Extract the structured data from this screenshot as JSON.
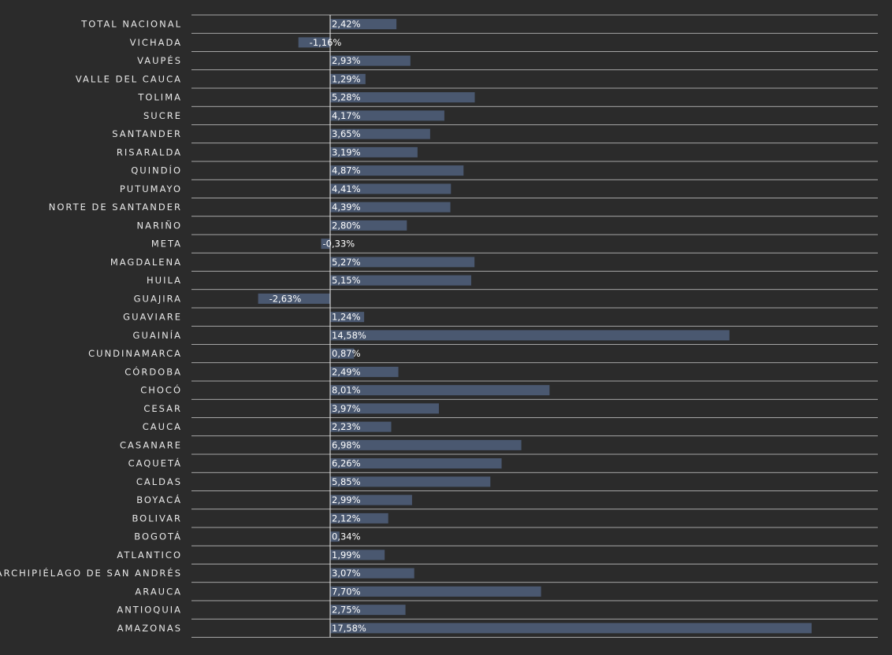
{
  "chart_data": {
    "type": "bar",
    "orientation": "horizontal",
    "title": "",
    "xlabel": "",
    "ylabel": "",
    "grid": true,
    "legend": "none",
    "bar_color": "#4a5870",
    "background_color": "#2b2b2b",
    "xlim": [
      -4.0,
      19.2
    ],
    "categories": [
      "TOTAL NACIONAL",
      "VICHADA",
      "VAUPÉS",
      "VALLE DEL CAUCA",
      "TOLIMA",
      "SUCRE",
      "SANTANDER",
      "RISARALDA",
      "QUINDÍO",
      "PUTUMAYO",
      "NORTE DE SANTANDER",
      "NARIÑO",
      "META",
      "MAGDALENA",
      "HUILA",
      "GUAJIRA",
      "GUAVIARE",
      "GUAINÍA",
      "CUNDINAMARCA",
      "CÓRDOBA",
      "CHOCÓ",
      "CESAR",
      "CAUCA",
      "CASANARE",
      "CAQUETÁ",
      "CALDAS",
      "BOYACÁ",
      "BOLIVAR",
      "BOGOTÁ",
      "ATLANTICO",
      "ARCHIPIÉLAGO DE SAN ANDRÉS",
      "ARAUCA",
      "ANTIOQUIA",
      "AMAZONAS"
    ],
    "values": [
      2.42,
      -1.16,
      2.93,
      1.29,
      5.28,
      4.17,
      3.65,
      3.19,
      4.87,
      4.41,
      4.39,
      2.8,
      -0.33,
      5.27,
      5.15,
      -2.63,
      1.24,
      14.58,
      0.87,
      2.49,
      8.01,
      3.97,
      2.23,
      6.98,
      6.26,
      5.85,
      2.99,
      2.12,
      0.34,
      1.99,
      3.07,
      7.7,
      2.75,
      17.58
    ],
    "value_labels": [
      "2,42%",
      "-1,16%",
      "2,93%",
      "1,29%",
      "5,28%",
      "4,17%",
      "3,65%",
      "3,19%",
      "4,87%",
      "4,41%",
      "4,39%",
      "2,80%",
      "-0,33%",
      "5,27%",
      "5,15%",
      "-2,63%",
      "1,24%",
      "14,58%",
      "0,87%",
      "2,49%",
      "8,01%",
      "3,97%",
      "2,23%",
      "6,98%",
      "6,26%",
      "5,85%",
      "2,99%",
      "2,12%",
      "0,34%",
      "1,99%",
      "3,07%",
      "7,70%",
      "2,75%",
      "17,58%"
    ]
  }
}
